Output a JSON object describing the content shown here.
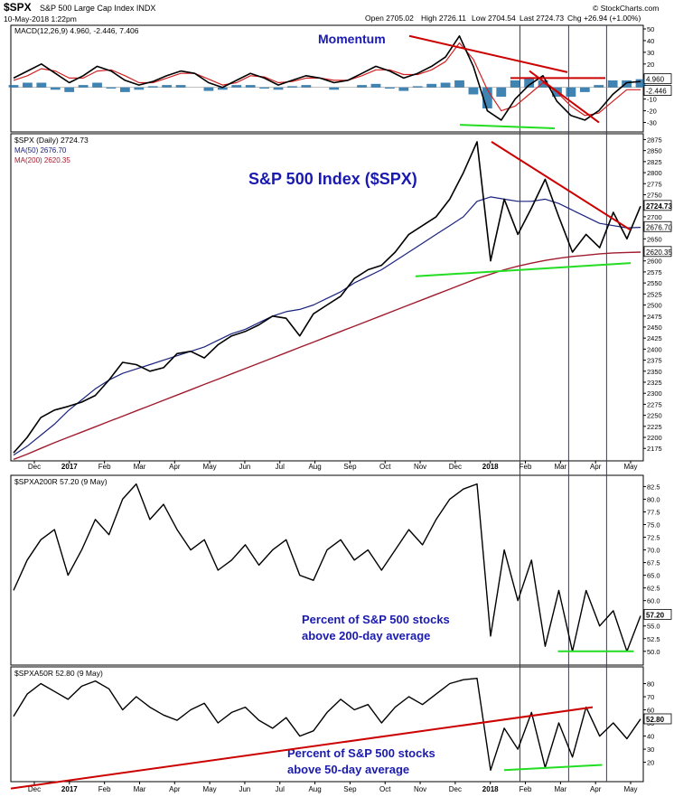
{
  "header": {
    "symbol": "$SPX",
    "name": "S&P 500 Large Cap Index INDX",
    "datetime": "10-May-2018 1:22pm",
    "open": "Open 2705.02",
    "high": "High 2726.11",
    "low": "Low 2704.54",
    "last": "Last 2724.73",
    "chg": "Chg +26.94 (+1.00%)",
    "source": "© StockCharts.com"
  },
  "colors": {
    "price_line": "#000000",
    "ma50": "#1a237e",
    "ma200": "#a01c2e",
    "trend_red": "#cc0000",
    "trend_green": "#22dd22",
    "vline_blue": "#3333aa",
    "hist_blue": "#1f6fa6",
    "annotation_blue": "#1a1ab0"
  },
  "x_axis_labels": [
    "Dec",
    "2017",
    "Feb",
    "Mar",
    "Apr",
    "May",
    "Jun",
    "Jul",
    "Aug",
    "Sep",
    "Oct",
    "Nov",
    "Dec",
    "2018",
    "Feb",
    "Mar",
    "Apr",
    "May"
  ],
  "chart_data": [
    {
      "panel": "macd",
      "type": "line",
      "title": "Momentum",
      "legend": "MACD(12,26,9) 4.960, -2.446, 7.406",
      "legend_parts": {
        "label": "MACD(12,26,9)",
        "macd": "4.960",
        "signal": "-2.446",
        "hist": "7.406"
      },
      "ylim": [
        -35,
        50
      ],
      "y_ticks": [
        50,
        40,
        30,
        20,
        10,
        0,
        -10,
        -20,
        -30
      ],
      "right_labels": [
        "4.960",
        "-2.446"
      ],
      "series_macd": [
        8,
        14,
        20,
        12,
        4,
        10,
        18,
        14,
        6,
        2,
        5,
        10,
        14,
        12,
        4,
        0,
        6,
        12,
        8,
        2,
        6,
        10,
        8,
        4,
        6,
        12,
        18,
        14,
        8,
        12,
        18,
        26,
        44,
        18,
        -20,
        -28,
        -10,
        2,
        10,
        -12,
        -24,
        -28,
        -20,
        -6,
        4,
        5
      ],
      "series_signal": [
        6,
        10,
        16,
        14,
        8,
        8,
        14,
        15,
        10,
        4,
        4,
        8,
        12,
        12,
        7,
        2,
        4,
        10,
        9,
        4,
        5,
        8,
        8,
        6,
        6,
        10,
        15,
        15,
        11,
        11,
        15,
        22,
        38,
        24,
        -2,
        -20,
        -16,
        -6,
        4,
        -4,
        -16,
        -24,
        -22,
        -12,
        -2,
        -2
      ],
      "annotations": {
        "red_trend": [
          [
            0.63,
            44
          ],
          [
            0.88,
            13
          ]
        ],
        "red_fall": [
          [
            0.82,
            14
          ],
          [
            0.93,
            -30
          ]
        ],
        "red_flat": [
          [
            0.79,
            8
          ],
          [
            0.94,
            8
          ]
        ],
        "green_support": [
          [
            0.71,
            -32
          ],
          [
            0.86,
            -35
          ]
        ]
      }
    },
    {
      "panel": "price",
      "type": "line",
      "title": "S&P 500 Index ($SPX)",
      "legend": [
        "$SPX (Daily) 2724.73",
        "MA(50) 2676.70",
        "MA(200) 2620.35"
      ],
      "ylim": [
        2155,
        2880
      ],
      "y_ticks": [
        2875,
        2850,
        2825,
        2800,
        2775,
        2750,
        2725,
        2700,
        2675,
        2650,
        2625,
        2600,
        2575,
        2550,
        2525,
        2500,
        2475,
        2450,
        2425,
        2400,
        2375,
        2350,
        2325,
        2300,
        2275,
        2250,
        2225,
        2200,
        2175
      ],
      "right_labels": [
        "2724.73",
        "2676.70",
        "2620.35"
      ],
      "series_price": [
        2165,
        2200,
        2245,
        2262,
        2270,
        2280,
        2295,
        2330,
        2370,
        2365,
        2350,
        2358,
        2390,
        2395,
        2380,
        2410,
        2430,
        2440,
        2455,
        2475,
        2470,
        2430,
        2480,
        2500,
        2520,
        2560,
        2580,
        2590,
        2620,
        2660,
        2680,
        2700,
        2740,
        2800,
        2870,
        2600,
        2740,
        2660,
        2720,
        2785,
        2700,
        2620,
        2660,
        2630,
        2710,
        2650,
        2724
      ],
      "series_ma50": [
        2160,
        2180,
        2205,
        2230,
        2260,
        2285,
        2310,
        2330,
        2345,
        2355,
        2365,
        2375,
        2385,
        2395,
        2405,
        2420,
        2435,
        2445,
        2460,
        2475,
        2485,
        2490,
        2500,
        2515,
        2530,
        2550,
        2565,
        2580,
        2600,
        2620,
        2640,
        2660,
        2680,
        2700,
        2735,
        2745,
        2740,
        2735,
        2735,
        2740,
        2730,
        2715,
        2700,
        2685,
        2680,
        2675,
        2676
      ],
      "series_ma200": [
        2150,
        2162,
        2175,
        2188,
        2200,
        2212,
        2224,
        2236,
        2248,
        2260,
        2272,
        2284,
        2296,
        2308,
        2320,
        2332,
        2344,
        2356,
        2368,
        2380,
        2392,
        2404,
        2416,
        2428,
        2440,
        2452,
        2464,
        2476,
        2488,
        2500,
        2512,
        2524,
        2536,
        2548,
        2560,
        2570,
        2580,
        2588,
        2595,
        2601,
        2606,
        2610,
        2613,
        2616,
        2618,
        2619,
        2620
      ],
      "annotations": {
        "red_trend": [
          [
            0.76,
            2870
          ],
          [
            0.98,
            2670
          ]
        ],
        "green_support": [
          [
            0.64,
            2565
          ],
          [
            0.98,
            2595
          ]
        ]
      }
    },
    {
      "panel": "above200",
      "type": "line",
      "legend": "$SPXA200R 57.20 (9 May)",
      "annotation_lines": [
        "Percent of S&P 500 stocks",
        "above 200-day average"
      ],
      "ylim": [
        48,
        84
      ],
      "y_ticks": [
        82.5,
        80.0,
        77.5,
        75.0,
        72.5,
        70.0,
        67.5,
        65.0,
        62.5,
        60.0,
        57.5,
        55.0,
        52.5,
        50.0
      ],
      "right_labels": [
        "57.20"
      ],
      "series": [
        62,
        68,
        72,
        74,
        65,
        70,
        76,
        73,
        80,
        83,
        76,
        79,
        74,
        70,
        72,
        66,
        68,
        71,
        67,
        70,
        72,
        65,
        64,
        70,
        72,
        68,
        70,
        66,
        70,
        74,
        71,
        76,
        80,
        82,
        83,
        53,
        70,
        60,
        68,
        51,
        62,
        50,
        62,
        55,
        58,
        50,
        57
      ],
      "annotations": {
        "green_support": [
          [
            0.865,
            50
          ],
          [
            0.985,
            50
          ]
        ]
      }
    },
    {
      "panel": "above50",
      "type": "line",
      "legend": "$SPXA50R 52.80 (9 May)",
      "annotation_lines": [
        "Percent of S&P 500 stocks",
        "above 50-day average"
      ],
      "ylim": [
        8,
        90
      ],
      "y_ticks": [
        80,
        70,
        60,
        50,
        40,
        30,
        20
      ],
      "right_labels": [
        "52.80"
      ],
      "series": [
        55,
        72,
        80,
        74,
        68,
        78,
        82,
        76,
        60,
        70,
        62,
        56,
        52,
        60,
        65,
        50,
        58,
        62,
        52,
        46,
        54,
        40,
        44,
        58,
        68,
        60,
        64,
        50,
        62,
        70,
        64,
        72,
        80,
        83,
        84,
        14,
        46,
        30,
        58,
        16,
        50,
        24,
        62,
        40,
        50,
        38,
        53
      ],
      "annotations": {
        "red_trend": [
          [
            0.0,
            0
          ],
          [
            0.92,
            62
          ]
        ],
        "green_support": [
          [
            0.78,
            14
          ],
          [
            0.935,
            18
          ]
        ]
      }
    }
  ]
}
